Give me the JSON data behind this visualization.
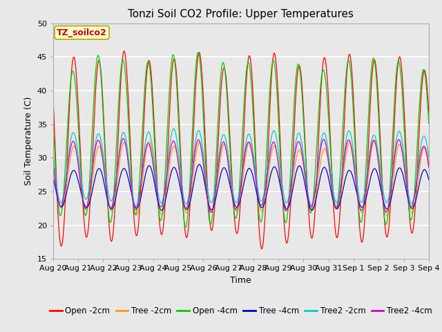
{
  "title": "Tonzi Soil CO2 Profile: Upper Temperatures",
  "xlabel": "Time",
  "ylabel": "Soil Temperature (C)",
  "ylim": [
    15,
    50
  ],
  "series": [
    {
      "label": "Open -2cm",
      "color": "#ff0000"
    },
    {
      "label": "Tree -2cm",
      "color": "#ff9900"
    },
    {
      "label": "Open -4cm",
      "color": "#00cc00"
    },
    {
      "label": "Tree -4cm",
      "color": "#0000cc"
    },
    {
      "label": "Tree2 -2cm",
      "color": "#00cccc"
    },
    {
      "label": "Tree2 -4cm",
      "color": "#cc00cc"
    }
  ],
  "xtick_labels": [
    "Aug 20",
    "Aug 21",
    "Aug 22",
    "Aug 23",
    "Aug 24",
    "Aug 25",
    "Aug 26",
    "Aug 27",
    "Aug 28",
    "Aug 29",
    "Aug 30",
    "Aug 31",
    "Sep 1",
    "Sep 2",
    "Sep 3",
    "Sep 4"
  ],
  "annotation_text": "TZ_soilco2",
  "annotation_color": "#cc0000",
  "annotation_bg": "#ffffcc",
  "annotation_border": "#aaaa00",
  "fig_bg_color": "#e8e8e8",
  "plot_bg_color": "#e8e8e8",
  "grid_color": "#ffffff",
  "title_fontsize": 11,
  "label_fontsize": 9,
  "tick_fontsize": 8,
  "legend_fontsize": 8.5
}
